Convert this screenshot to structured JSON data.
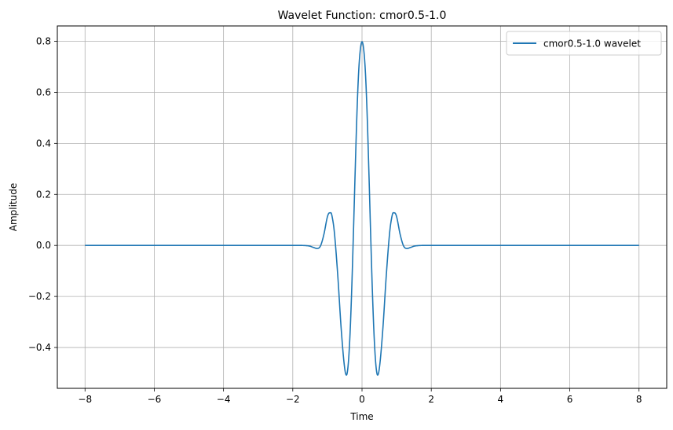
{
  "chart_data": {
    "type": "line",
    "title": "Wavelet Function: cmor0.5-1.0",
    "xlabel": "Time",
    "ylabel": "Amplitude",
    "xlim": [
      -8.8,
      8.8
    ],
    "ylim": [
      -0.56,
      0.86
    ],
    "xticks": [
      -8,
      -6,
      -4,
      -2,
      0,
      2,
      4,
      6,
      8
    ],
    "xtick_labels": [
      "−8",
      "−6",
      "−4",
      "−2",
      "0",
      "2",
      "4",
      "6",
      "8"
    ],
    "yticks": [
      -0.4,
      -0.2,
      0.0,
      0.2,
      0.4,
      0.6,
      0.8
    ],
    "ytick_labels": [
      "−0.4",
      "−0.2",
      "0.0",
      "0.2",
      "0.4",
      "0.6",
      "0.8"
    ],
    "grid": true,
    "legend_placement": "top-right",
    "series": [
      {
        "name": "cmor0.5-1.0 wavelet",
        "color": "#1f77b4",
        "x": [
          -8,
          -3,
          -2.5,
          -2.0,
          -1.8,
          -1.6,
          -1.5,
          -1.4,
          -1.3,
          -1.2,
          -1.1,
          -1.0,
          -0.95,
          -0.9,
          -0.85,
          -0.8,
          -0.7,
          -0.6,
          -0.5,
          -0.45,
          -0.4,
          -0.35,
          -0.3,
          -0.25,
          -0.2,
          -0.15,
          -0.1,
          -0.05,
          0.0,
          0.05,
          0.1,
          0.15,
          0.2,
          0.25,
          0.3,
          0.35,
          0.4,
          0.45,
          0.5,
          0.6,
          0.7,
          0.8,
          0.85,
          0.9,
          0.95,
          1.0,
          1.1,
          1.2,
          1.3,
          1.4,
          1.5,
          1.6,
          1.8,
          2.0,
          2.5,
          3,
          8
        ],
        "y": [
          0.0,
          0.0,
          0.0,
          0.0,
          0.0,
          -0.001,
          -0.003,
          -0.008,
          -0.012,
          -0.002,
          0.044,
          0.112,
          0.127,
          0.128,
          0.103,
          0.053,
          -0.119,
          -0.33,
          -0.482,
          -0.508,
          -0.468,
          -0.358,
          -0.182,
          0.04,
          0.28,
          0.504,
          0.673,
          0.766,
          0.798,
          0.766,
          0.673,
          0.504,
          0.28,
          0.04,
          -0.182,
          -0.358,
          -0.468,
          -0.508,
          -0.482,
          -0.33,
          -0.119,
          0.053,
          0.103,
          0.128,
          0.127,
          0.112,
          0.044,
          -0.002,
          -0.012,
          -0.008,
          -0.003,
          -0.001,
          0.0,
          0.0,
          0.0,
          0.0,
          0.0
        ]
      }
    ]
  }
}
